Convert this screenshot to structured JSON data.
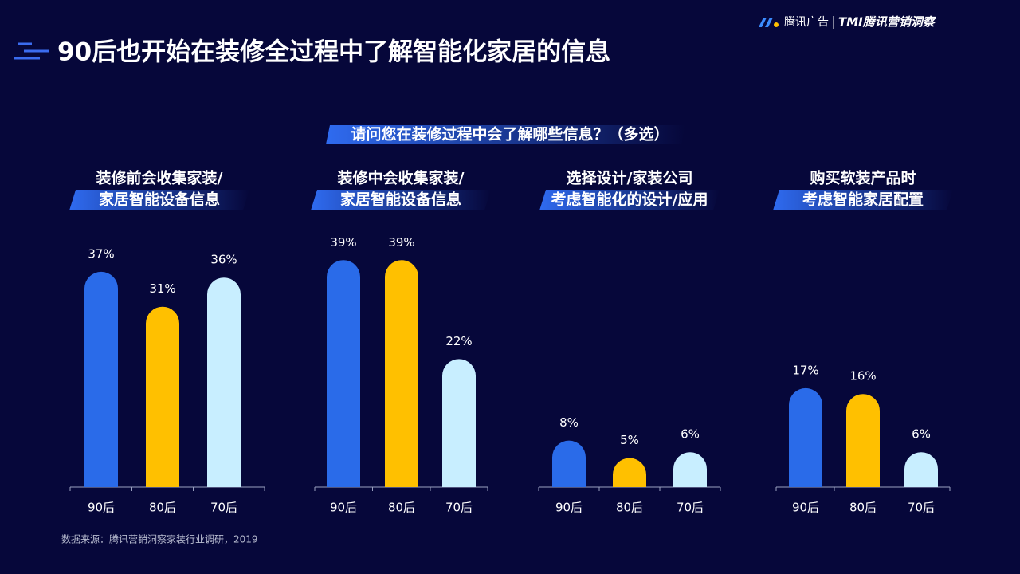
{
  "header": {
    "title": "90后也开始在装修全过程中了解智能化家居的信息",
    "question": "请问您在装修过程中会了解哪些信息？（多选）",
    "brand": [
      "腾讯广告",
      "TMI腾讯营销洞察"
    ]
  },
  "source": "数据来源：腾讯营销洞察家装行业调研，2019",
  "chart_data": [
    {
      "type": "bar",
      "title": [
        "装修前会收集家装/",
        "家居智能设备信息"
      ],
      "categories": [
        "90后",
        "80后",
        "70后"
      ],
      "values": [
        37,
        31,
        36
      ],
      "value_labels": [
        "37%",
        "31%",
        "36%"
      ],
      "colors": [
        "#2a6be9",
        "#ffc000",
        "#c8eeff"
      ]
    },
    {
      "type": "bar",
      "title": [
        "装修中会收集家装/",
        "家居智能设备信息"
      ],
      "categories": [
        "90后",
        "80后",
        "70后"
      ],
      "values": [
        39,
        39,
        22
      ],
      "value_labels": [
        "39%",
        "39%",
        "22%"
      ],
      "colors": [
        "#2a6be9",
        "#ffc000",
        "#c8eeff"
      ]
    },
    {
      "type": "bar",
      "title": [
        "选择设计/家装公司",
        "考虑智能化的设计/应用"
      ],
      "categories": [
        "90后",
        "80后",
        "70后"
      ],
      "values": [
        8,
        5,
        6
      ],
      "value_labels": [
        "8%",
        "5%",
        "6%"
      ],
      "colors": [
        "#2a6be9",
        "#ffc000",
        "#c8eeff"
      ]
    },
    {
      "type": "bar",
      "title": [
        "购买软装产品时",
        "考虑智能家居配置"
      ],
      "categories": [
        "90后",
        "80后",
        "70后"
      ],
      "values": [
        17,
        16,
        6
      ],
      "value_labels": [
        "17%",
        "16%",
        "6%"
      ],
      "colors": [
        "#2a6be9",
        "#ffc000",
        "#c8eeff"
      ]
    }
  ]
}
